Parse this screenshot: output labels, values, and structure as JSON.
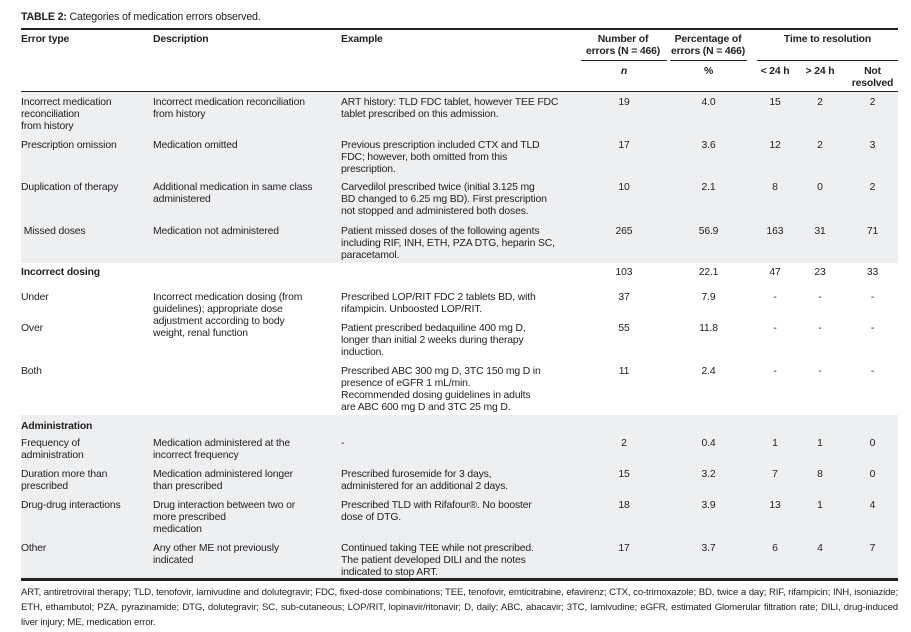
{
  "title": {
    "label": "TABLE 2:",
    "text": "Categories of medication errors observed."
  },
  "headers": {
    "error_type": "Error type",
    "description": "Description",
    "example": "Example",
    "number": "Number of\nerrors (N = 466)",
    "percentage": "Percentage of\nerrors (N = 466)",
    "time": "Time to resolution",
    "n": "n",
    "pct": "%",
    "lt24": "< 24 h",
    "gt24": "> 24 h",
    "not_resolved": "Not\nresolved"
  },
  "rows": [
    {
      "type": "Incorrect medication\nreconciliation\nfrom history",
      "desc": "Incorrect medication reconciliation\nfrom history",
      "example": "ART history: TLD FDC tablet, however TEE FDC\ntablet prescribed on this admission.",
      "n": "19",
      "pct": "4.0",
      "lt24": "15",
      "gt24": "2",
      "nr": "2"
    },
    {
      "type": "Prescription omission",
      "desc": "Medication omitted",
      "example": "Previous prescription included CTX and TLD\nFDC; however, both omitted from this\nprescription.",
      "n": "17",
      "pct": "3.6",
      "lt24": "12",
      "gt24": "2",
      "nr": "3"
    },
    {
      "type": "Duplication of therapy",
      "desc": "Additional medication in same class\nadministered",
      "example": "Carvedilol prescribed twice (initial 3.125 mg\nBD changed to 6.25 mg BD). First prescription\nnot stopped and administered both doses.",
      "n": "10",
      "pct": "2.1",
      "lt24": "8",
      "gt24": "0",
      "nr": "2"
    },
    {
      "type": " Missed doses",
      "desc": "Medication not administered",
      "example": "Patient missed doses of the following agents\nincluding RIF, INH, ETH, PZA DTG, heparin SC,\nparacetamol.",
      "n": "265",
      "pct": "56.9",
      "lt24": "163",
      "gt24": "31",
      "nr": "71"
    },
    {
      "type": "Incorrect dosing",
      "section": true,
      "desc": "",
      "example": "",
      "n": "103",
      "pct": "22.1",
      "lt24": "47",
      "gt24": "23",
      "nr": "33"
    },
    {
      "type": "Under",
      "desc": "Incorrect medication dosing (from\nguidelines); appropriate dose\nadjustment according to body\nweight, renal function",
      "example": "Prescribed LOP/RIT FDC 2 tablets BD, with\nrifampicin. Unboosted LOP/RIT.",
      "n": "37",
      "pct": "7.9",
      "lt24": "-",
      "gt24": "-",
      "nr": "-"
    },
    {
      "type": "Over",
      "desc": "",
      "example": "Patient prescribed bedaquiline 400 mg D,\nlonger than initial 2 weeks during therapy\ninduction.",
      "n": "55",
      "pct": "11.8",
      "lt24": "-",
      "gt24": "-",
      "nr": "-"
    },
    {
      "type": "Both",
      "desc": "",
      "example": "Prescribed ABC 300 mg D, 3TC 150 mg D in\npresence of eGFR 1 mL/min.\nRecommended dosing guidelines in adults\nare ABC 600 mg D and 3TC 25 mg D.",
      "n": "11",
      "pct": "2.4",
      "lt24": "-",
      "gt24": "-",
      "nr": "-"
    },
    {
      "type": "Administration",
      "section": true,
      "desc": "",
      "example": "",
      "n": "",
      "pct": "",
      "lt24": "",
      "gt24": "",
      "nr": ""
    },
    {
      "type": "Frequency of\nadministration",
      "desc": "Medication administered at the\nincorrect frequency",
      "example": "-",
      "n": "2",
      "pct": "0.4",
      "lt24": "1",
      "gt24": "1",
      "nr": "0"
    },
    {
      "type": "Duration more than\nprescribed",
      "desc": "Medication administered longer\nthan prescribed",
      "example": "Prescribed furosemide for 3 days,\nadministered for an additional 2 days.",
      "n": "15",
      "pct": "3.2",
      "lt24": "7",
      "gt24": "8",
      "nr": "0"
    },
    {
      "type": "Drug-drug interactions",
      "desc": "Drug interaction between two or\nmore prescribed\nmedication",
      "example": "Prescribed TLD with Rifafour®. No booster\ndose of DTG.",
      "n": "18",
      "pct": "3.9",
      "lt24": "13",
      "gt24": "1",
      "nr": "4"
    },
    {
      "type": "Other",
      "desc": "Any other ME not previously\nindicated",
      "example": "Continued taking TEE while not prescribed.\nThe patient developed DILI and the notes\nindicated to stop ART.",
      "n": "17",
      "pct": "3.7",
      "lt24": "6",
      "gt24": "4",
      "nr": "7"
    }
  ],
  "footnote": "ART, antiretroviral therapy; TLD, tenofovir, lamivudine and dolutegravir; FDC, fixed-dose combinations; TEE, tenofovir, emticitrabine, efavirenz; CTX, co-trimoxazole; BD, twice a day; RIF, rifampicin; INH, isoniazide; ETH, ethambutol; PZA, pyrazinamide; DTG, dolutegravir; SC, sub-cutaneous; LOP/RIT, lopinavir/ritonavir; D, daily; ABC, abacavir; 3TC, lamivudine; eGFR, estimated Glomerular filtration rate; DILI, drug-induced liver injury; ME, medication error.",
  "colors": {
    "band": "#eeeff1",
    "rule": "#222222"
  }
}
